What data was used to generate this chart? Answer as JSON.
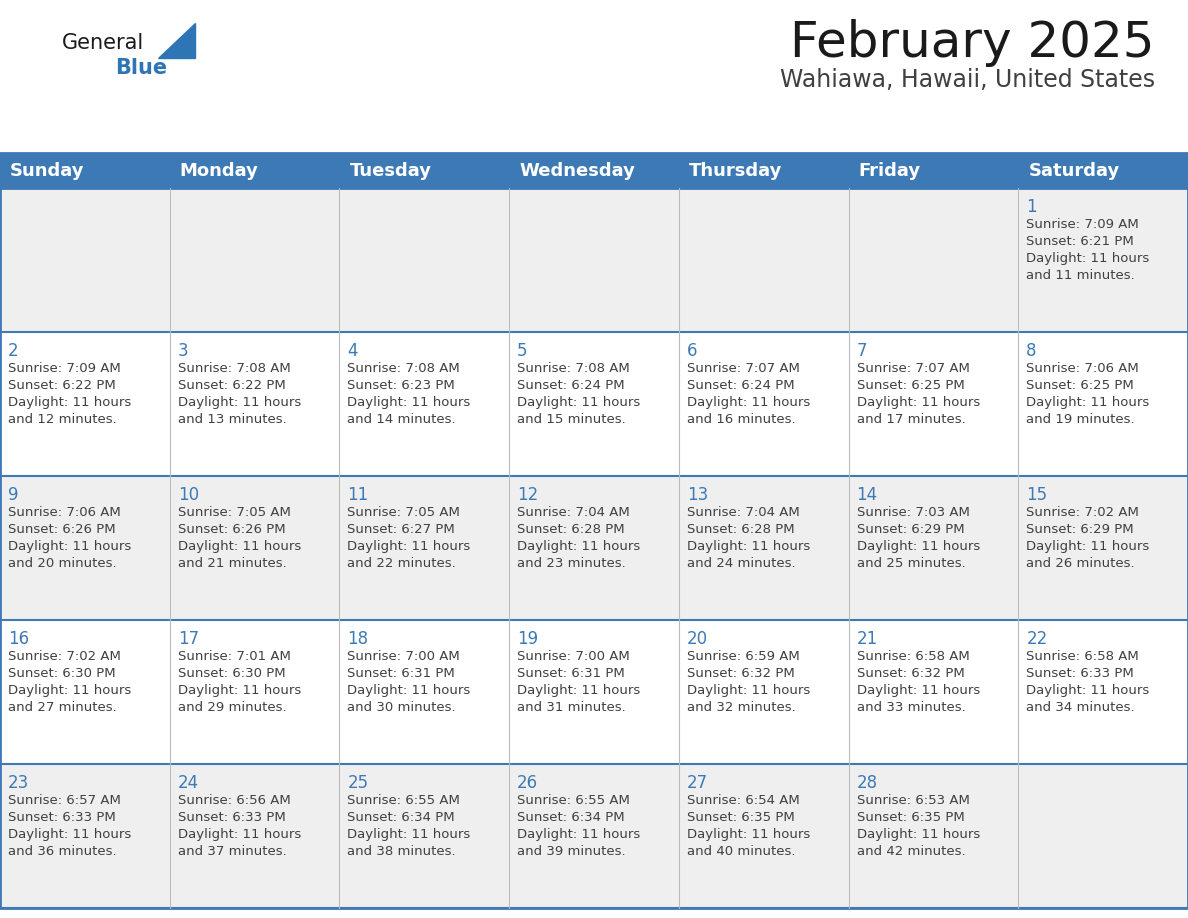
{
  "title": "February 2025",
  "subtitle": "Wahiawa, Hawaii, United States",
  "days_of_week": [
    "Sunday",
    "Monday",
    "Tuesday",
    "Wednesday",
    "Thursday",
    "Friday",
    "Saturday"
  ],
  "header_bg": "#3D7AB5",
  "header_text": "#FFFFFF",
  "cell_bg_row0": "#EFEFEF",
  "cell_bg_odd": "#EFEFEF",
  "cell_bg_even": "#FFFFFF",
  "border_color": "#3D7AB5",
  "day_number_color": "#3D7AB5",
  "text_color": "#404040",
  "title_color": "#1a1a1a",
  "subtitle_color": "#404040",
  "logo_general_color": "#1a1a1a",
  "logo_blue_color": "#2E75B6",
  "calendar_data": [
    {
      "day": 1,
      "col": 6,
      "row": 0,
      "sunrise": "7:09 AM",
      "sunset": "6:21 PM",
      "daylight_hours": 11,
      "daylight_minutes": 11
    },
    {
      "day": 2,
      "col": 0,
      "row": 1,
      "sunrise": "7:09 AM",
      "sunset": "6:22 PM",
      "daylight_hours": 11,
      "daylight_minutes": 12
    },
    {
      "day": 3,
      "col": 1,
      "row": 1,
      "sunrise": "7:08 AM",
      "sunset": "6:22 PM",
      "daylight_hours": 11,
      "daylight_minutes": 13
    },
    {
      "day": 4,
      "col": 2,
      "row": 1,
      "sunrise": "7:08 AM",
      "sunset": "6:23 PM",
      "daylight_hours": 11,
      "daylight_minutes": 14
    },
    {
      "day": 5,
      "col": 3,
      "row": 1,
      "sunrise": "7:08 AM",
      "sunset": "6:24 PM",
      "daylight_hours": 11,
      "daylight_minutes": 15
    },
    {
      "day": 6,
      "col": 4,
      "row": 1,
      "sunrise": "7:07 AM",
      "sunset": "6:24 PM",
      "daylight_hours": 11,
      "daylight_minutes": 16
    },
    {
      "day": 7,
      "col": 5,
      "row": 1,
      "sunrise": "7:07 AM",
      "sunset": "6:25 PM",
      "daylight_hours": 11,
      "daylight_minutes": 17
    },
    {
      "day": 8,
      "col": 6,
      "row": 1,
      "sunrise": "7:06 AM",
      "sunset": "6:25 PM",
      "daylight_hours": 11,
      "daylight_minutes": 19
    },
    {
      "day": 9,
      "col": 0,
      "row": 2,
      "sunrise": "7:06 AM",
      "sunset": "6:26 PM",
      "daylight_hours": 11,
      "daylight_minutes": 20
    },
    {
      "day": 10,
      "col": 1,
      "row": 2,
      "sunrise": "7:05 AM",
      "sunset": "6:26 PM",
      "daylight_hours": 11,
      "daylight_minutes": 21
    },
    {
      "day": 11,
      "col": 2,
      "row": 2,
      "sunrise": "7:05 AM",
      "sunset": "6:27 PM",
      "daylight_hours": 11,
      "daylight_minutes": 22
    },
    {
      "day": 12,
      "col": 3,
      "row": 2,
      "sunrise": "7:04 AM",
      "sunset": "6:28 PM",
      "daylight_hours": 11,
      "daylight_minutes": 23
    },
    {
      "day": 13,
      "col": 4,
      "row": 2,
      "sunrise": "7:04 AM",
      "sunset": "6:28 PM",
      "daylight_hours": 11,
      "daylight_minutes": 24
    },
    {
      "day": 14,
      "col": 5,
      "row": 2,
      "sunrise": "7:03 AM",
      "sunset": "6:29 PM",
      "daylight_hours": 11,
      "daylight_minutes": 25
    },
    {
      "day": 15,
      "col": 6,
      "row": 2,
      "sunrise": "7:02 AM",
      "sunset": "6:29 PM",
      "daylight_hours": 11,
      "daylight_minutes": 26
    },
    {
      "day": 16,
      "col": 0,
      "row": 3,
      "sunrise": "7:02 AM",
      "sunset": "6:30 PM",
      "daylight_hours": 11,
      "daylight_minutes": 27
    },
    {
      "day": 17,
      "col": 1,
      "row": 3,
      "sunrise": "7:01 AM",
      "sunset": "6:30 PM",
      "daylight_hours": 11,
      "daylight_minutes": 29
    },
    {
      "day": 18,
      "col": 2,
      "row": 3,
      "sunrise": "7:00 AM",
      "sunset": "6:31 PM",
      "daylight_hours": 11,
      "daylight_minutes": 30
    },
    {
      "day": 19,
      "col": 3,
      "row": 3,
      "sunrise": "7:00 AM",
      "sunset": "6:31 PM",
      "daylight_hours": 11,
      "daylight_minutes": 31
    },
    {
      "day": 20,
      "col": 4,
      "row": 3,
      "sunrise": "6:59 AM",
      "sunset": "6:32 PM",
      "daylight_hours": 11,
      "daylight_minutes": 32
    },
    {
      "day": 21,
      "col": 5,
      "row": 3,
      "sunrise": "6:58 AM",
      "sunset": "6:32 PM",
      "daylight_hours": 11,
      "daylight_minutes": 33
    },
    {
      "day": 22,
      "col": 6,
      "row": 3,
      "sunrise": "6:58 AM",
      "sunset": "6:33 PM",
      "daylight_hours": 11,
      "daylight_minutes": 34
    },
    {
      "day": 23,
      "col": 0,
      "row": 4,
      "sunrise": "6:57 AM",
      "sunset": "6:33 PM",
      "daylight_hours": 11,
      "daylight_minutes": 36
    },
    {
      "day": 24,
      "col": 1,
      "row": 4,
      "sunrise": "6:56 AM",
      "sunset": "6:33 PM",
      "daylight_hours": 11,
      "daylight_minutes": 37
    },
    {
      "day": 25,
      "col": 2,
      "row": 4,
      "sunrise": "6:55 AM",
      "sunset": "6:34 PM",
      "daylight_hours": 11,
      "daylight_minutes": 38
    },
    {
      "day": 26,
      "col": 3,
      "row": 4,
      "sunrise": "6:55 AM",
      "sunset": "6:34 PM",
      "daylight_hours": 11,
      "daylight_minutes": 39
    },
    {
      "day": 27,
      "col": 4,
      "row": 4,
      "sunrise": "6:54 AM",
      "sunset": "6:35 PM",
      "daylight_hours": 11,
      "daylight_minutes": 40
    },
    {
      "day": 28,
      "col": 5,
      "row": 4,
      "sunrise": "6:53 AM",
      "sunset": "6:35 PM",
      "daylight_hours": 11,
      "daylight_minutes": 42
    }
  ]
}
